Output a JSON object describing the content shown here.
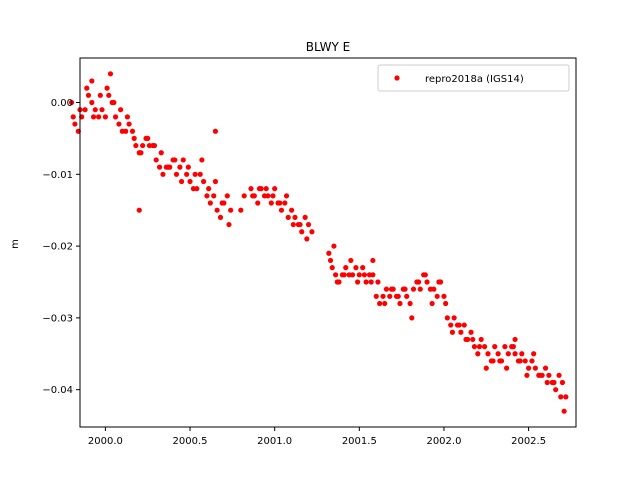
{
  "chart_data": {
    "type": "scatter",
    "title": "BLWY E",
    "xlabel": "",
    "ylabel": "m",
    "xlim": [
      1999.85,
      2002.78
    ],
    "ylim": [
      -0.0452,
      0.0062
    ],
    "xticks": [
      2000.0,
      2000.5,
      2001.0,
      2001.5,
      2002.0,
      2002.5
    ],
    "xtick_labels": [
      "2000.0",
      "2000.5",
      "2001.0",
      "2001.5",
      "2002.0",
      "2002.5"
    ],
    "yticks": [
      0.0,
      -0.01,
      -0.02,
      -0.03,
      -0.04
    ],
    "ytick_labels": [
      "0.00",
      "−0.01",
      "−0.02",
      "−0.03",
      "−0.04"
    ],
    "grid": false,
    "legend_position": "top-right",
    "series": [
      {
        "name": "repro2018a (IGS14)",
        "color": "#ff0000",
        "marker": "circle",
        "x": [
          1999.8,
          1999.82,
          1999.84,
          1999.86,
          1999.88,
          1999.9,
          1999.92,
          1999.94,
          1999.96,
          1999.98,
          2000.0,
          2000.02,
          2000.04,
          2000.06,
          2000.08,
          2000.1,
          2000.12,
          2000.14,
          2000.16,
          2000.18,
          2000.2,
          2000.22,
          2000.24,
          2000.26,
          2000.28,
          2000.3,
          2000.32,
          2000.34,
          2000.36,
          2000.38,
          2000.4,
          2000.42,
          2000.44,
          2000.46,
          2000.48,
          2000.5,
          2000.52,
          2000.54,
          2000.56,
          2000.58,
          2000.6,
          2000.62,
          2000.64,
          2000.66,
          2000.68,
          2000.7,
          2000.72,
          2000.74,
          2000.8,
          2000.82,
          2000.86,
          2000.88,
          2000.9,
          2000.92,
          2000.94,
          2000.96,
          2000.98,
          2001.0,
          2001.02,
          2001.04,
          2001.06,
          2001.08,
          2001.1,
          2001.12,
          2001.14,
          2001.16,
          2001.18,
          2001.2,
          2001.22,
          2001.32,
          2001.34,
          2001.36,
          2001.38,
          2001.4,
          2001.42,
          2001.44,
          2001.46,
          2001.48,
          2001.5,
          2001.52,
          2001.54,
          2001.56,
          2001.58,
          2001.6,
          2001.62,
          2001.64,
          2001.66,
          2001.68,
          2001.7,
          2001.72,
          2001.74,
          2001.76,
          2001.78,
          2001.8,
          2001.82,
          2001.84,
          2001.86,
          2001.88,
          2001.9,
          2001.92,
          2001.94,
          2001.96,
          2001.98,
          2002.0,
          2002.02,
          2002.04,
          2002.06,
          2002.08,
          2002.1,
          2002.12,
          2002.14,
          2002.16,
          2002.18,
          2002.2,
          2002.22,
          2002.24,
          2002.26,
          2002.28,
          2002.3,
          2002.32,
          2002.34,
          2002.36,
          2002.38,
          2002.4,
          2002.42,
          2002.44,
          2002.46,
          2002.48,
          2002.5,
          2002.52,
          2002.54,
          2002.56,
          2002.58,
          2002.6,
          2002.62,
          2002.64,
          2002.66,
          2002.68,
          2002.7,
          2002.72,
          1999.81,
          1999.85,
          1999.89,
          1999.93,
          1999.97,
          2000.01,
          2000.05,
          2000.09,
          2000.13,
          2000.17,
          2000.21,
          2000.25,
          2000.29,
          2000.33,
          2000.37,
          2000.41,
          2000.45,
          2000.49,
          2000.53,
          2000.57,
          2000.61,
          2000.65,
          2000.69,
          2000.73,
          2000.87,
          2000.91,
          2000.95,
          2000.99,
          2001.03,
          2001.07,
          2001.11,
          2001.15,
          2001.19,
          2001.33,
          2001.37,
          2001.41,
          2001.45,
          2001.49,
          2001.53,
          2001.57,
          2001.61,
          2001.65,
          2001.69,
          2001.73,
          2001.77,
          2001.81,
          2001.85,
          2001.89,
          2001.93,
          2001.97,
          2002.01,
          2002.05,
          2002.09,
          2002.13,
          2002.17,
          2002.21,
          2002.25,
          2002.29,
          2002.33,
          2002.37,
          2002.41,
          2002.45,
          2002.49,
          2002.53,
          2002.57,
          2002.61,
          2002.65,
          2002.69,
          2002.71,
          2000.2,
          2000.65,
          1999.92,
          2000.03,
          2001.35,
          2001.58,
          2002.42
        ],
        "y": [
          0.0,
          -0.003,
          -0.004,
          -0.002,
          -0.001,
          0.001,
          0.0,
          -0.001,
          -0.002,
          -0.001,
          -0.002,
          0.001,
          0.0,
          -0.002,
          -0.003,
          -0.004,
          -0.004,
          -0.003,
          -0.004,
          -0.006,
          -0.007,
          -0.006,
          -0.005,
          -0.006,
          -0.006,
          -0.008,
          -0.009,
          -0.01,
          -0.009,
          -0.009,
          -0.008,
          -0.01,
          -0.009,
          -0.008,
          -0.01,
          -0.011,
          -0.012,
          -0.012,
          -0.01,
          -0.011,
          -0.013,
          -0.014,
          -0.013,
          -0.015,
          -0.016,
          -0.014,
          -0.013,
          -0.015,
          -0.015,
          -0.013,
          -0.012,
          -0.013,
          -0.014,
          -0.012,
          -0.013,
          -0.013,
          -0.014,
          -0.012,
          -0.014,
          -0.015,
          -0.014,
          -0.016,
          -0.015,
          -0.016,
          -0.017,
          -0.018,
          -0.016,
          -0.017,
          -0.018,
          -0.021,
          -0.023,
          -0.024,
          -0.025,
          -0.024,
          -0.023,
          -0.024,
          -0.024,
          -0.023,
          -0.024,
          -0.023,
          -0.025,
          -0.024,
          -0.024,
          -0.027,
          -0.028,
          -0.027,
          -0.026,
          -0.027,
          -0.026,
          -0.027,
          -0.028,
          -0.026,
          -0.027,
          -0.028,
          -0.026,
          -0.025,
          -0.026,
          -0.024,
          -0.025,
          -0.026,
          -0.026,
          -0.027,
          -0.025,
          -0.027,
          -0.03,
          -0.031,
          -0.03,
          -0.031,
          -0.032,
          -0.031,
          -0.033,
          -0.032,
          -0.034,
          -0.035,
          -0.033,
          -0.034,
          -0.035,
          -0.036,
          -0.034,
          -0.035,
          -0.036,
          -0.034,
          -0.035,
          -0.034,
          -0.035,
          -0.036,
          -0.035,
          -0.036,
          -0.037,
          -0.036,
          -0.037,
          -0.038,
          -0.038,
          -0.037,
          -0.038,
          -0.039,
          -0.04,
          -0.038,
          -0.039,
          -0.041,
          -0.002,
          -0.001,
          0.002,
          -0.002,
          0.001,
          0.002,
          0.0,
          -0.001,
          -0.002,
          -0.005,
          -0.007,
          -0.005,
          -0.006,
          -0.007,
          -0.009,
          -0.008,
          -0.011,
          -0.009,
          -0.01,
          -0.008,
          -0.012,
          -0.011,
          -0.014,
          -0.017,
          -0.013,
          -0.012,
          -0.012,
          -0.013,
          -0.014,
          -0.013,
          -0.017,
          -0.017,
          -0.019,
          -0.022,
          -0.025,
          -0.024,
          -0.022,
          -0.025,
          -0.024,
          -0.025,
          -0.025,
          -0.028,
          -0.026,
          -0.027,
          -0.026,
          -0.03,
          -0.025,
          -0.024,
          -0.028,
          -0.025,
          -0.028,
          -0.032,
          -0.031,
          -0.033,
          -0.033,
          -0.034,
          -0.037,
          -0.036,
          -0.036,
          -0.037,
          -0.034,
          -0.036,
          -0.038,
          -0.035,
          -0.038,
          -0.039,
          -0.039,
          -0.041,
          -0.043,
          -0.015,
          -0.004,
          0.003,
          0.004,
          -0.02,
          -0.022,
          -0.033
        ]
      }
    ]
  }
}
